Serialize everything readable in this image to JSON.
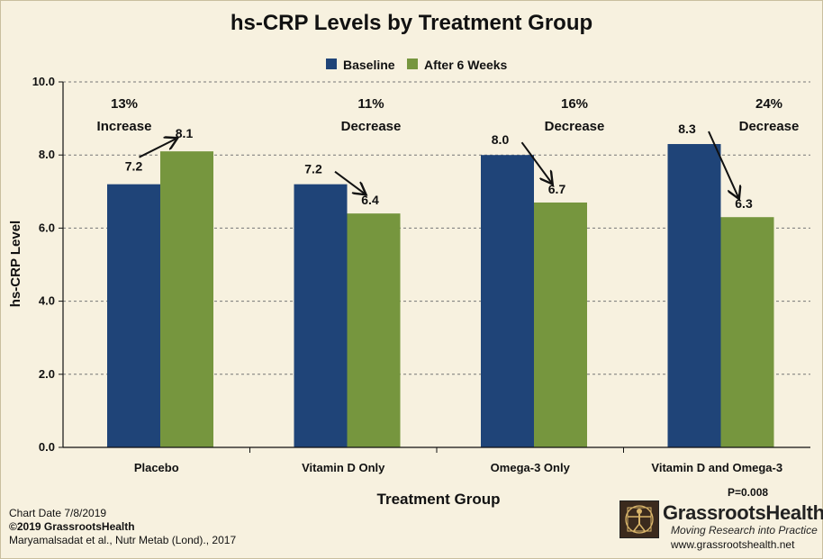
{
  "chart_data": {
    "type": "bar",
    "title": "hs-CRP Levels by Treatment Group",
    "xlabel": "Treatment Group",
    "ylabel": "hs-CRP Level",
    "ylim": [
      0,
      10
    ],
    "yticks": [
      "0.0",
      "2.0",
      "4.0",
      "6.0",
      "8.0",
      "10.0"
    ],
    "categories": [
      "Placebo",
      "Vitamin D Only",
      "Omega-3 Only",
      "Vitamin D and Omega-3"
    ],
    "series": [
      {
        "name": "Baseline",
        "color": "#1f4478",
        "values": [
          7.2,
          7.2,
          8.0,
          8.3
        ],
        "labels": [
          "7.2",
          "7.2",
          "8.0",
          "8.3"
        ]
      },
      {
        "name": "After 6 Weeks",
        "color": "#76963e",
        "values": [
          8.1,
          6.4,
          6.7,
          6.3
        ],
        "labels": [
          "8.1",
          "6.4",
          "6.7",
          "6.3"
        ]
      }
    ],
    "annotations": [
      {
        "pct": "13%",
        "direction": "Increase"
      },
      {
        "pct": "11%",
        "direction": "Decrease"
      },
      {
        "pct": "16%",
        "direction": "Decrease"
      },
      {
        "pct": "24%",
        "direction": "Decrease"
      }
    ],
    "legend_position": "top",
    "grid": "dashed horizontal"
  },
  "footer": {
    "chart_date": "Chart Date 7/8/2019",
    "copyright": "©2019 GrassrootsHealth",
    "citation": "Maryamalsadat et al., Nutr Metab (Lond)., 2017",
    "p_value": "P=0.008"
  },
  "brand": {
    "name": "GrassrootsHealth",
    "tagline": "Moving Research into Practice",
    "url": "www.grassrootshealth.net"
  }
}
